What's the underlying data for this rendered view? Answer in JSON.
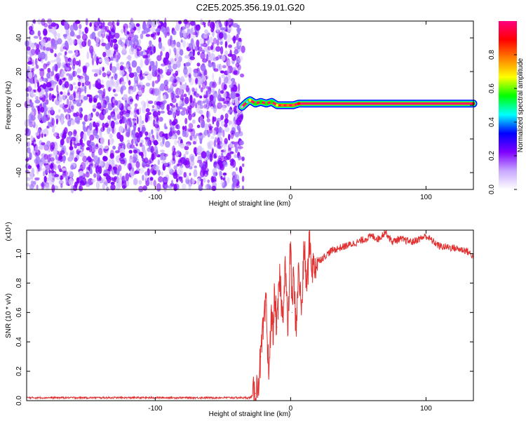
{
  "title": "C2E5.2025.356.19.01.G20",
  "chart_data": [
    {
      "type": "heatmap",
      "xlabel": "Height of straight line (km)",
      "ylabel": "Frequency (Hz)",
      "xlim": [
        -195,
        135
      ],
      "ylim": [
        -50,
        50
      ],
      "xticks": [
        -100,
        0,
        100
      ],
      "yticks": [
        -40,
        -20,
        0,
        20,
        40
      ],
      "colorbar": {
        "label": "Normalized spectral amplitude",
        "range": [
          0,
          1
        ],
        "ticks": [
          0.0,
          0.2,
          0.4,
          0.6,
          0.8
        ],
        "colors": [
          "#ffffff",
          "#c8a8ff",
          "#7f00ff",
          "#0000ff",
          "#00ffff",
          "#00ff00",
          "#ffff00",
          "#ff8000",
          "#ff0000",
          "#ff0080"
        ]
      },
      "noise_region_x": [
        -195,
        -35
      ],
      "tone": [
        {
          "x": -36,
          "y": -1,
          "v": 0.15
        },
        {
          "x": -32,
          "y": 2,
          "v": 0.5
        },
        {
          "x": -30,
          "y": 3,
          "v": 0.65
        },
        {
          "x": -26,
          "y": 1,
          "v": 0.6
        },
        {
          "x": -22,
          "y": 2,
          "v": 0.55
        },
        {
          "x": -18,
          "y": 1,
          "v": 0.6
        },
        {
          "x": -14,
          "y": 2,
          "v": 0.6
        },
        {
          "x": -10,
          "y": 0,
          "v": 0.7
        },
        {
          "x": -6,
          "y": 0,
          "v": 0.75
        },
        {
          "x": -2,
          "y": 0,
          "v": 0.8
        },
        {
          "x": 2,
          "y": 0,
          "v": 0.8
        },
        {
          "x": 6,
          "y": 1,
          "v": 0.85
        },
        {
          "x": 135,
          "y": 1,
          "v": 0.9
        }
      ]
    },
    {
      "type": "line",
      "xlabel": "Height of straight line (km)",
      "ylabel": "SNR (10 * v/v)",
      "yscale_label": "(x10⁴)",
      "xlim": [
        -195,
        135
      ],
      "ylim": [
        0,
        1.16
      ],
      "xticks": [
        -100,
        0,
        100
      ],
      "yticks": [
        0.0,
        0.2,
        0.4,
        0.6,
        0.8,
        1.0
      ],
      "color": "#e23030",
      "series": [
        {
          "x": [
            -195,
            -150,
            -100,
            -60,
            -30,
            -26,
            -24,
            -22,
            -20,
            -18,
            -17,
            -16,
            -15,
            -14,
            -13,
            -12,
            -10,
            -8,
            -6,
            -4,
            -2,
            0,
            1,
            2,
            4,
            6,
            8,
            10,
            12,
            14,
            16,
            20,
            25,
            30,
            40,
            50,
            60,
            65,
            70,
            75,
            80,
            90,
            100,
            110,
            120,
            130,
            135
          ],
          "y": [
            0.02,
            0.02,
            0.02,
            0.02,
            0.02,
            0.05,
            0.12,
            0.3,
            0.5,
            0.65,
            0.3,
            0.25,
            0.4,
            0.6,
            0.45,
            0.7,
            0.5,
            0.85,
            0.55,
            0.95,
            0.45,
            1.13,
            0.6,
            0.85,
            0.5,
            0.9,
            0.6,
            1.05,
            0.75,
            1.1,
            0.9,
            0.95,
            0.98,
            1.02,
            1.05,
            1.08,
            1.12,
            1.1,
            1.15,
            1.08,
            1.1,
            1.08,
            1.12,
            1.05,
            1.04,
            1.02,
            0.98
          ]
        }
      ]
    }
  ]
}
